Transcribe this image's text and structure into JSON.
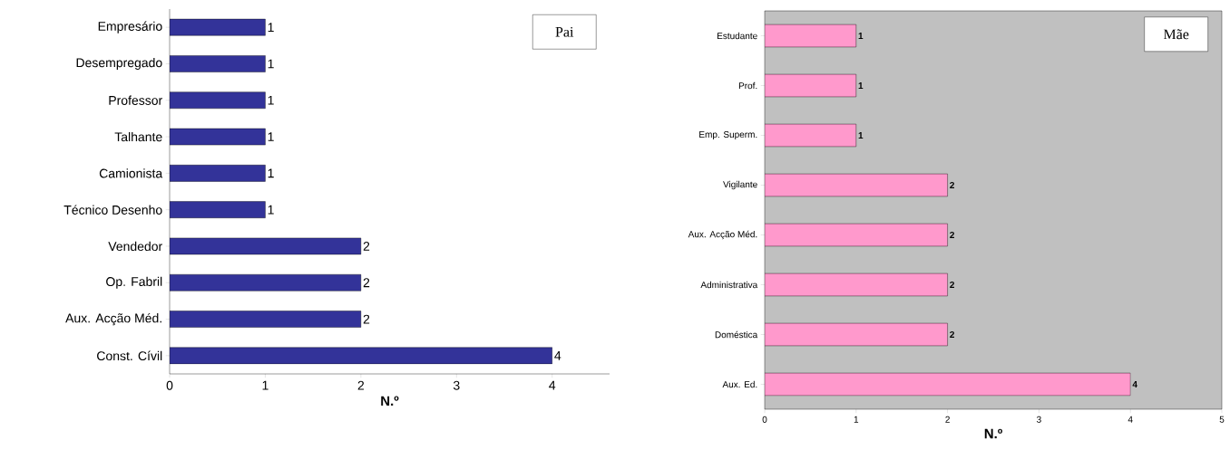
{
  "chart_data": [
    {
      "type": "bar",
      "orientation": "horizontal",
      "title": "Pai",
      "xlabel": "N.º",
      "categories": [
        "Empresário",
        "Desempregado",
        "Professor",
        "Talhante",
        "Camionista",
        "Técnico Desenho",
        "Vendedor",
        "Op. Fabril",
        "Aux. Acção Méd.",
        "Const. Cívil"
      ],
      "values": [
        1,
        1,
        1,
        1,
        1,
        1,
        2,
        2,
        2,
        4
      ],
      "color": "#333399",
      "xlim": [
        0,
        4.6
      ],
      "xticks": [
        0,
        1,
        2,
        3,
        4
      ],
      "data_labels": true
    },
    {
      "type": "bar",
      "orientation": "horizontal",
      "title": "Mãe",
      "xlabel": "N.º",
      "categories": [
        "Estudante",
        "Prof.",
        "Emp. Superm.",
        "Vigilante",
        "Aux. Acção Méd.",
        "Administrativa",
        "Doméstica",
        "Aux. Ed."
      ],
      "values": [
        1,
        1,
        1,
        2,
        2,
        2,
        2,
        4
      ],
      "color": "#ff99cc",
      "xlim": [
        0,
        5
      ],
      "xticks": [
        0,
        1,
        2,
        3,
        4,
        5
      ],
      "data_labels": true
    }
  ]
}
